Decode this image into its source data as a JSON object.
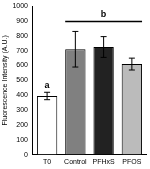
{
  "chart_data": {
    "type": "bar",
    "y_label": "Fluorescence Intensity (A.U.)",
    "categories": [
      "T0",
      "Control",
      "PFHxS",
      "PFOS"
    ],
    "values": [
      395,
      710,
      725,
      610
    ],
    "errors": [
      25,
      120,
      70,
      40
    ],
    "colors": [
      "#ffffff",
      "#808080",
      "#222222",
      "#bbbbbb"
    ],
    "ylim": [
      0,
      1000
    ],
    "yticks": [
      0,
      100,
      200,
      300,
      400,
      500,
      600,
      700,
      800,
      900,
      1000
    ],
    "grid": false,
    "annotations": [
      {
        "text": "a",
        "categories": [
          "T0"
        ]
      },
      {
        "text": "b",
        "categories": [
          "Control",
          "PFOS"
        ]
      }
    ]
  }
}
